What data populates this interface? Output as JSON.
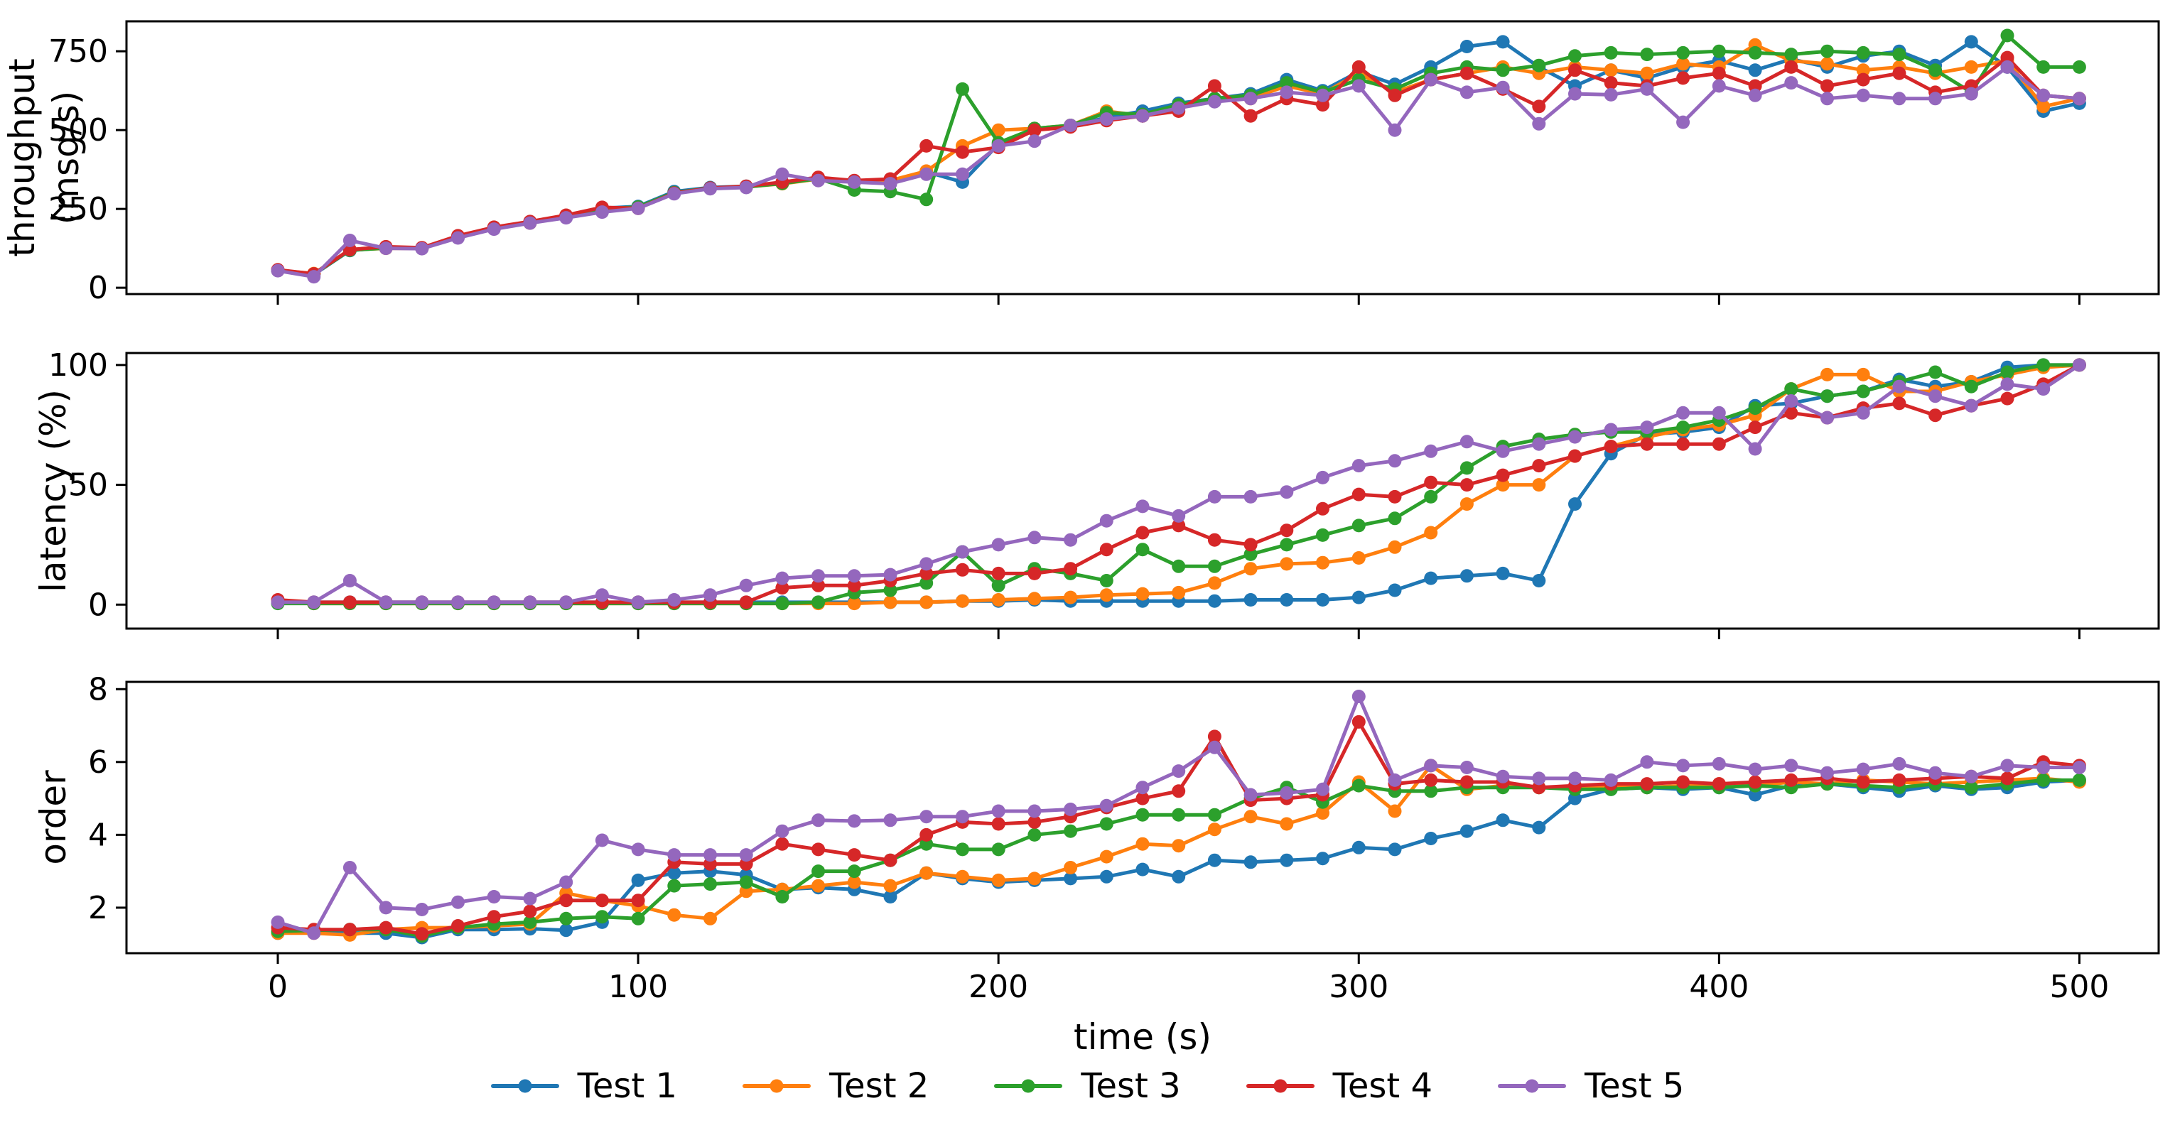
{
  "figure": {
    "xlabel": "time (s)",
    "xlim": [
      -42,
      522
    ],
    "x_ticks": [
      0,
      100,
      200,
      300,
      400,
      500
    ],
    "background_color": "#ffffff",
    "spine_color": "#000000",
    "subplots": [
      {
        "id": "throughput",
        "ylabel_lines": [
          "throughput",
          "(msg/s)"
        ],
        "yticks": [
          0,
          250,
          500,
          750
        ],
        "ylim": [
          -20,
          845
        ]
      },
      {
        "id": "latency",
        "ylabel_lines": [
          "latency (%)"
        ],
        "yticks": [
          0,
          50,
          100
        ],
        "ylim": [
          -10,
          105
        ]
      },
      {
        "id": "order",
        "ylabel_lines": [
          "order"
        ],
        "yticks": [
          2,
          4,
          6,
          8
        ],
        "ylim": [
          0.75,
          8.2
        ]
      }
    ]
  },
  "legend": {
    "items": [
      {
        "label": "Test 1",
        "color": "#1f77b4"
      },
      {
        "label": "Test 2",
        "color": "#ff7f0e"
      },
      {
        "label": "Test 3",
        "color": "#2ca02c"
      },
      {
        "label": "Test 4",
        "color": "#d62728"
      },
      {
        "label": "Test 5",
        "color": "#9467bd"
      }
    ]
  },
  "chart_data": {
    "type": "line",
    "title": "",
    "xlabel": "time (s)",
    "ylabels": [
      "throughput (msg/s)",
      "latency (%)",
      "order"
    ],
    "legend_position": "bottom",
    "grid": false,
    "marker": "circle",
    "x": [
      0,
      10,
      20,
      30,
      40,
      50,
      60,
      70,
      80,
      90,
      100,
      110,
      120,
      130,
      140,
      150,
      160,
      170,
      180,
      190,
      200,
      210,
      220,
      230,
      240,
      250,
      260,
      270,
      280,
      290,
      300,
      310,
      320,
      330,
      340,
      350,
      360,
      370,
      380,
      390,
      400,
      410,
      420,
      430,
      440,
      450,
      460,
      470,
      480,
      490,
      500
    ],
    "series": [
      {
        "name": "Test 1",
        "color": "#1f77b4",
        "throughput": [
          55,
          42,
          118,
          128,
          126,
          162,
          190,
          208,
          228,
          252,
          258,
          305,
          318,
          322,
          332,
          348,
          338,
          330,
          368,
          335,
          455,
          505,
          512,
          540,
          560,
          585,
          600,
          615,
          660,
          625,
          685,
          645,
          700,
          765,
          780,
          700,
          640,
          690,
          665,
          700,
          720,
          690,
          725,
          700,
          735,
          750,
          705,
          780,
          700,
          560,
          585
        ],
        "latency": [
          1,
          1,
          1,
          1,
          1,
          1,
          1,
          1,
          1,
          1,
          1,
          1,
          1,
          1,
          1,
          1,
          1,
          1,
          1,
          1.5,
          1.5,
          2,
          1.5,
          1.5,
          1.5,
          1.5,
          1.5,
          2,
          2,
          2,
          3,
          6,
          11,
          12,
          13,
          10,
          42,
          63,
          71,
          72,
          74,
          83,
          84,
          87,
          89,
          94,
          91,
          93,
          99,
          100,
          100
        ],
        "order": [
          1.3,
          1.35,
          1.3,
          1.3,
          1.18,
          1.4,
          1.4,
          1.42,
          1.38,
          1.6,
          2.75,
          2.95,
          3.0,
          2.9,
          2.5,
          2.55,
          2.5,
          2.3,
          2.95,
          2.8,
          2.7,
          2.75,
          2.8,
          2.85,
          3.05,
          2.85,
          3.3,
          3.25,
          3.3,
          3.35,
          3.65,
          3.6,
          3.9,
          4.1,
          4.4,
          4.2,
          5.0,
          5.25,
          5.3,
          5.25,
          5.3,
          5.1,
          5.35,
          5.4,
          5.3,
          5.2,
          5.35,
          5.25,
          5.3,
          5.45,
          5.5
        ]
      },
      {
        "name": "Test 2",
        "color": "#ff7f0e",
        "throughput": [
          55,
          45,
          120,
          125,
          125,
          160,
          188,
          205,
          225,
          250,
          255,
          300,
          315,
          320,
          330,
          345,
          335,
          340,
          370,
          450,
          500,
          505,
          515,
          560,
          545,
          575,
          595,
          600,
          640,
          615,
          680,
          620,
          660,
          680,
          700,
          680,
          700,
          690,
          680,
          710,
          700,
          770,
          720,
          710,
          690,
          700,
          680,
          700,
          720,
          575,
          600
        ],
        "latency": [
          1,
          0.5,
          0.5,
          0.5,
          0.5,
          0.5,
          0.5,
          0.5,
          0.5,
          0.5,
          0.5,
          0.5,
          0.5,
          0.5,
          0.5,
          0.5,
          0.5,
          1,
          1,
          1.5,
          2,
          2.5,
          3,
          4,
          4.5,
          5,
          9,
          15,
          17,
          17.5,
          19.5,
          24,
          30,
          42,
          50,
          50,
          62,
          66,
          70,
          73,
          75,
          79,
          90,
          96,
          96,
          89,
          89,
          93,
          96,
          99,
          100
        ],
        "order": [
          1.3,
          1.3,
          1.25,
          1.4,
          1.45,
          1.45,
          1.5,
          1.55,
          2.4,
          2.2,
          2.05,
          1.8,
          1.7,
          2.45,
          2.5,
          2.6,
          2.7,
          2.6,
          2.95,
          2.85,
          2.75,
          2.8,
          3.1,
          3.4,
          3.75,
          3.7,
          4.15,
          4.5,
          4.3,
          4.6,
          5.45,
          4.65,
          5.9,
          5.25,
          5.35,
          5.3,
          5.3,
          5.35,
          5.3,
          5.35,
          5.4,
          5.35,
          5.45,
          5.4,
          5.5,
          5.45,
          5.4,
          5.45,
          5.5,
          5.55,
          5.45
        ]
      },
      {
        "name": "Test 3",
        "color": "#2ca02c",
        "throughput": [
          55,
          43,
          119,
          126,
          125,
          160,
          189,
          207,
          227,
          250,
          256,
          302,
          316,
          320,
          331,
          346,
          310,
          305,
          280,
          630,
          460,
          505,
          515,
          555,
          550,
          580,
          600,
          610,
          650,
          620,
          660,
          630,
          680,
          700,
          690,
          705,
          735,
          745,
          740,
          745,
          750,
          745,
          740,
          750,
          745,
          740,
          690,
          620,
          800,
          700,
          700
        ],
        "latency": [
          0.5,
          0.5,
          0.5,
          0.5,
          0.5,
          0.5,
          0.5,
          0.5,
          0.5,
          0.5,
          0.5,
          0.5,
          0.5,
          0.5,
          0.5,
          1,
          5,
          6,
          9,
          22,
          8,
          15,
          13,
          10,
          23,
          16,
          16,
          21,
          25,
          29,
          33,
          36,
          45,
          57,
          66,
          69,
          71,
          72,
          72,
          74,
          77,
          82,
          90,
          87,
          89,
          93,
          97,
          91,
          97,
          100,
          100
        ],
        "order": [
          1.35,
          1.38,
          1.4,
          1.4,
          1.22,
          1.45,
          1.55,
          1.6,
          1.7,
          1.75,
          1.7,
          2.6,
          2.65,
          2.7,
          2.3,
          3.0,
          3.0,
          3.3,
          3.75,
          3.6,
          3.6,
          4.0,
          4.1,
          4.3,
          4.55,
          4.55,
          4.55,
          5.0,
          5.3,
          4.9,
          5.35,
          5.2,
          5.2,
          5.3,
          5.3,
          5.3,
          5.25,
          5.25,
          5.3,
          5.3,
          5.3,
          5.35,
          5.3,
          5.4,
          5.35,
          5.3,
          5.4,
          5.3,
          5.4,
          5.5,
          5.5
        ]
      },
      {
        "name": "Test 4",
        "color": "#d62728",
        "throughput": [
          57,
          44,
          121,
          130,
          127,
          165,
          192,
          210,
          230,
          255,
          252,
          300,
          316,
          322,
          335,
          350,
          340,
          345,
          450,
          430,
          445,
          500,
          510,
          530,
          545,
          560,
          640,
          545,
          600,
          580,
          700,
          610,
          660,
          680,
          630,
          575,
          690,
          650,
          640,
          665,
          680,
          640,
          700,
          640,
          660,
          680,
          620,
          640,
          730,
          610,
          600
        ],
        "latency": [
          2,
          1,
          1,
          1,
          1,
          1,
          1,
          1,
          1,
          1,
          1,
          1,
          1,
          1,
          7,
          8,
          8,
          10,
          13,
          14.5,
          13,
          13,
          15,
          23,
          30,
          33,
          27,
          25,
          31,
          40,
          46,
          45,
          51,
          50,
          54,
          58,
          62,
          66,
          67,
          67,
          67,
          74,
          80,
          78,
          82,
          84,
          79,
          83,
          86,
          92,
          100
        ],
        "order": [
          1.45,
          1.4,
          1.4,
          1.45,
          1.28,
          1.5,
          1.75,
          1.9,
          2.2,
          2.2,
          2.2,
          3.25,
          3.2,
          3.2,
          3.75,
          3.6,
          3.45,
          3.3,
          4.0,
          4.35,
          4.3,
          4.35,
          4.5,
          4.75,
          5.0,
          5.2,
          6.7,
          4.95,
          5.0,
          5.1,
          7.1,
          5.4,
          5.5,
          5.45,
          5.45,
          5.3,
          5.35,
          5.4,
          5.4,
          5.45,
          5.4,
          5.45,
          5.5,
          5.55,
          5.45,
          5.5,
          5.55,
          5.6,
          5.55,
          6.0,
          5.9
        ]
      },
      {
        "name": "Test 5",
        "color": "#9467bd",
        "throughput": [
          54,
          35,
          150,
          125,
          124,
          158,
          186,
          205,
          222,
          240,
          252,
          298,
          314,
          318,
          360,
          340,
          335,
          330,
          360,
          360,
          450,
          465,
          515,
          535,
          545,
          570,
          590,
          600,
          620,
          610,
          640,
          500,
          660,
          620,
          635,
          520,
          615,
          612,
          630,
          525,
          640,
          610,
          650,
          600,
          610,
          600,
          600,
          615,
          700,
          610,
          600
        ],
        "latency": [
          1,
          1,
          10,
          1,
          1,
          1,
          1,
          1,
          1,
          4,
          1,
          2,
          4,
          8,
          11,
          12,
          12,
          12.5,
          17,
          22,
          25,
          28,
          27,
          35,
          41,
          37,
          45,
          45,
          47,
          53,
          58,
          60,
          64,
          68,
          64,
          67,
          70,
          73,
          74,
          80,
          80,
          65,
          85,
          78,
          80,
          91,
          87,
          83,
          92,
          90,
          100
        ],
        "order": [
          1.6,
          1.3,
          3.1,
          2.0,
          1.95,
          2.15,
          2.3,
          2.25,
          2.7,
          3.85,
          3.6,
          3.45,
          3.45,
          3.45,
          4.1,
          4.4,
          4.38,
          4.4,
          4.5,
          4.5,
          4.65,
          4.65,
          4.7,
          4.8,
          5.3,
          5.75,
          6.4,
          5.1,
          5.15,
          5.25,
          7.8,
          5.5,
          5.9,
          5.85,
          5.6,
          5.55,
          5.55,
          5.5,
          6.0,
          5.9,
          5.95,
          5.8,
          5.9,
          5.7,
          5.8,
          5.95,
          5.7,
          5.6,
          5.9,
          5.85,
          5.85
        ]
      }
    ]
  }
}
